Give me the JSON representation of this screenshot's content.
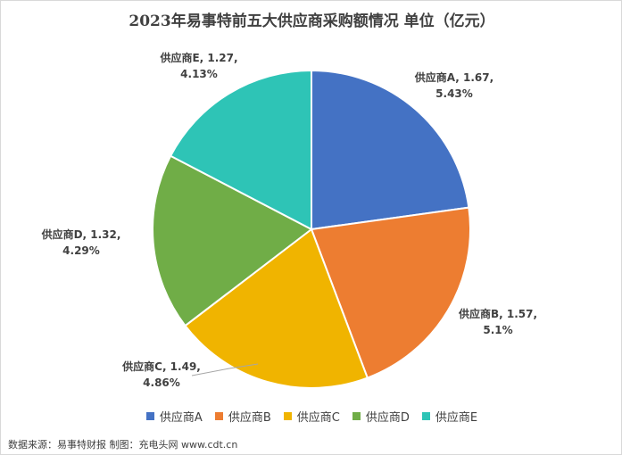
{
  "chart_data": {
    "type": "pie",
    "title": "2023年易事特前五大供应商采购额情况 单位（亿元）",
    "categories": [
      "供应商A",
      "供应商B",
      "供应商C",
      "供应商D",
      "供应商E"
    ],
    "values": [
      1.67,
      1.57,
      1.49,
      1.32,
      1.27
    ],
    "percent_labels": [
      "5.43%",
      "5.1%",
      "4.86%",
      "4.29%",
      "4.13%"
    ],
    "data_labels": [
      [
        "供应商A, 1.67,",
        "5.43%"
      ],
      [
        "供应商B, 1.57,",
        "5.1%"
      ],
      [
        "供应商C, 1.49,",
        "4.86%"
      ],
      [
        "供应商D, 1.32,",
        "4.29%"
      ],
      [
        "供应商E, 1.27,",
        "4.13%"
      ]
    ],
    "colors": [
      "#4472c4",
      "#ed7d31",
      "#f0b400",
      "#70ad47",
      "#2ec4b6"
    ],
    "legend_position": "bottom"
  },
  "footer": {
    "source": "数据来源：易事特财报  制图：充电头网 www.cdt.cn"
  }
}
